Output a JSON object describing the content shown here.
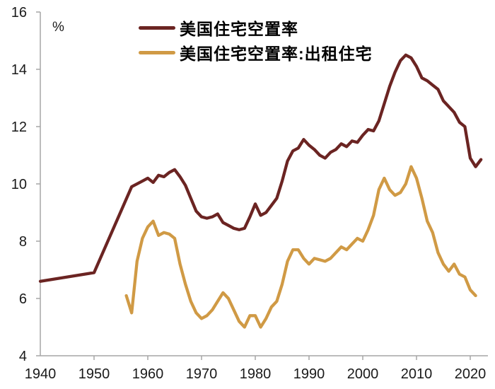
{
  "page": {
    "background": "#FFFFFF"
  },
  "chart_data": {
    "type": "line",
    "title": "",
    "xlabel": "",
    "ylabel": "%",
    "ylim": [
      4,
      16
    ],
    "xlim": [
      1940,
      2023.3
    ],
    "y_ticks": [
      4,
      6,
      8,
      10,
      12,
      14,
      16
    ],
    "x_ticks": [
      1940,
      1950,
      1960,
      1970,
      1980,
      1990,
      2000,
      2010,
      2020
    ],
    "grid": false,
    "legend_position": "top-left-inside",
    "axis_color": "#A6A6A6",
    "tick_label_color": "#1A1A1A",
    "series": [
      {
        "name": "美国住宅空置率",
        "color": "#6B2422",
        "x": [
          1940,
          1950,
          1957,
          1958,
          1959,
          1960,
          1961,
          1962,
          1963,
          1964,
          1965,
          1966,
          1967,
          1968,
          1969,
          1970,
          1971,
          1972,
          1973,
          1974,
          1975,
          1976,
          1977,
          1978,
          1979,
          1980,
          1981,
          1982,
          1983,
          1984,
          1985,
          1986,
          1987,
          1988,
          1989,
          1990,
          1991,
          1992,
          1993,
          1994,
          1995,
          1996,
          1997,
          1998,
          1999,
          2000,
          2001,
          2002,
          2003,
          2004,
          2005,
          2006,
          2007,
          2008,
          2009,
          2010,
          2011,
          2012,
          2013,
          2014,
          2015,
          2016,
          2017,
          2018,
          2019,
          2020,
          2021,
          2022
        ],
        "values": [
          6.6,
          6.9,
          9.9,
          10.0,
          10.1,
          10.2,
          10.05,
          10.3,
          10.25,
          10.4,
          10.5,
          10.25,
          9.95,
          9.5,
          9.05,
          8.85,
          8.8,
          8.85,
          8.95,
          8.65,
          8.55,
          8.45,
          8.4,
          8.45,
          8.85,
          9.3,
          8.9,
          9.0,
          9.25,
          9.5,
          10.1,
          10.8,
          11.15,
          11.25,
          11.55,
          11.35,
          11.2,
          11.0,
          10.9,
          11.1,
          11.2,
          11.4,
          11.3,
          11.5,
          11.45,
          11.7,
          11.9,
          11.85,
          12.2,
          12.8,
          13.4,
          13.9,
          14.3,
          14.5,
          14.4,
          14.1,
          13.7,
          13.6,
          13.45,
          13.3,
          12.9,
          12.7,
          12.5,
          12.15,
          12.0,
          10.9,
          10.6,
          10.85
        ]
      },
      {
        "name": "美国住宅空置率:出租住宅",
        "color": "#D09A45",
        "x": [
          1956,
          1957,
          1958,
          1959,
          1960,
          1961,
          1962,
          1963,
          1964,
          1965,
          1966,
          1967,
          1968,
          1969,
          1970,
          1971,
          1972,
          1973,
          1974,
          1975,
          1976,
          1977,
          1978,
          1979,
          1980,
          1981,
          1982,
          1983,
          1984,
          1985,
          1986,
          1987,
          1988,
          1989,
          1990,
          1991,
          1992,
          1993,
          1994,
          1995,
          1996,
          1997,
          1998,
          1999,
          2000,
          2001,
          2002,
          2003,
          2004,
          2005,
          2006,
          2007,
          2008,
          2009,
          2010,
          2011,
          2012,
          2013,
          2014,
          2015,
          2016,
          2017,
          2018,
          2019,
          2020,
          2021
        ],
        "values": [
          6.1,
          5.5,
          7.3,
          8.1,
          8.5,
          8.7,
          8.2,
          8.3,
          8.25,
          8.1,
          7.2,
          6.5,
          5.9,
          5.5,
          5.3,
          5.4,
          5.6,
          5.9,
          6.2,
          6.0,
          5.6,
          5.2,
          5.0,
          5.4,
          5.4,
          5.0,
          5.3,
          5.7,
          5.9,
          6.5,
          7.3,
          7.7,
          7.7,
          7.4,
          7.2,
          7.4,
          7.35,
          7.3,
          7.4,
          7.6,
          7.8,
          7.7,
          7.9,
          8.1,
          8.0,
          8.4,
          8.9,
          9.8,
          10.2,
          9.8,
          9.6,
          9.7,
          10.0,
          10.6,
          10.2,
          9.5,
          8.7,
          8.3,
          7.6,
          7.2,
          6.95,
          7.2,
          6.85,
          6.75,
          6.3,
          6.1
        ]
      }
    ]
  }
}
